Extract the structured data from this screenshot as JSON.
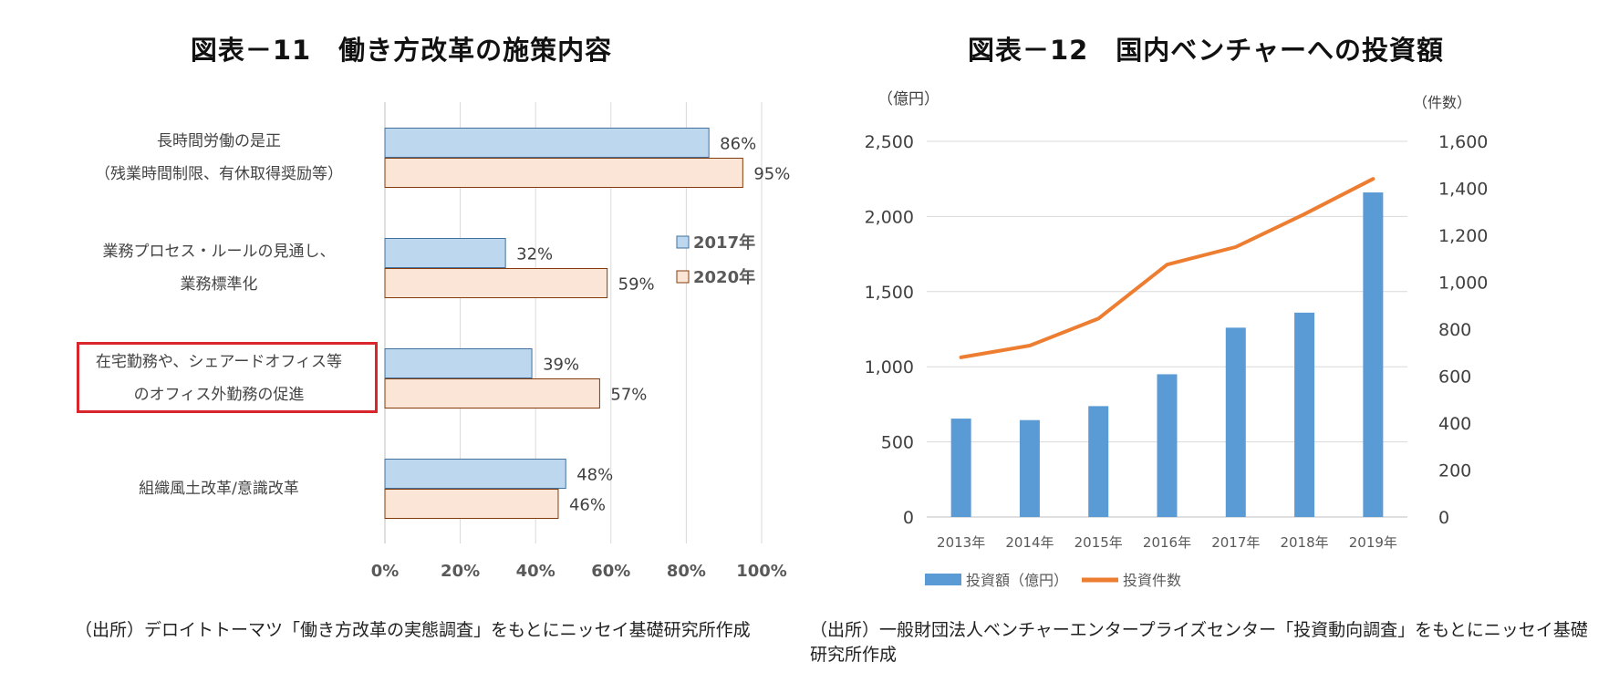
{
  "left_chart": {
    "title": "図表－11　働き方改革の施策内容",
    "source": "（出所）デロイトトーマツ「働き方改革の実態調査」をもとにニッセイ基礎研究所作成",
    "colors": {
      "s2017_fill": "#bdd7ee",
      "s2017_stroke": "#41719c",
      "s2020_fill": "#fbe5d6",
      "s2020_stroke": "#843c0c",
      "highlight": "#d9262c"
    }
  },
  "right_chart": {
    "title": "図表－12　国内ベンチャーへの投資額",
    "source": "（出所）一般財団法人ベンチャーエンタープライズセンター「投資動向調査」をもとにニッセイ基礎研究所作成",
    "colors": {
      "bar": "#5b9bd5",
      "line": "#ed7d31"
    }
  },
  "chart_data": [
    {
      "type": "bar",
      "orientation": "horizontal",
      "title": "図表－11　働き方改革の施策内容",
      "categories": [
        [
          "長時間労働の是正",
          "（残業時間制限、有休取得奨励等）"
        ],
        [
          "業務プロセス・ルールの見通し、",
          "業務標準化"
        ],
        [
          "在宅勤務や、シェアードオフィス等",
          "のオフィス外勤務の促進"
        ],
        [
          "組織風土改革/意識改革"
        ]
      ],
      "highlighted_category_index": 2,
      "series": [
        {
          "name": "2017年",
          "values": [
            86,
            32,
            39,
            48
          ]
        },
        {
          "name": "2020年",
          "values": [
            95,
            59,
            57,
            46
          ]
        }
      ],
      "data_labels": [
        [
          "86%",
          "32%",
          "39%",
          "48%"
        ],
        [
          "95%",
          "59%",
          "57%",
          "46%"
        ]
      ],
      "xlim": [
        0,
        100
      ],
      "xticks": [
        "0%",
        "20%",
        "40%",
        "60%",
        "80%",
        "100%"
      ],
      "grid": true,
      "legend_position": "right"
    },
    {
      "type": "bar",
      "title": "図表－12　国内ベンチャーへの投資額",
      "categories": [
        "2013年",
        "2014年",
        "2015年",
        "2016年",
        "2017年",
        "2018年",
        "2019年"
      ],
      "series": [
        {
          "name": "投資額（億円）",
          "type": "bar",
          "axis": "left",
          "values": [
            655,
            645,
            738,
            950,
            1260,
            1360,
            2160
          ]
        },
        {
          "name": "投資件数",
          "type": "line",
          "axis": "right",
          "values": [
            680,
            730,
            845,
            1075,
            1150,
            1290,
            1440
          ]
        }
      ],
      "ylabel_left": "（億円）",
      "ylabel_right": "（件数）",
      "ylim_left": [
        0,
        2500
      ],
      "ylim_right": [
        0,
        1600
      ],
      "yticks_left": [
        "0",
        "500",
        "1,000",
        "1,500",
        "2,000",
        "2,500"
      ],
      "yticks_right": [
        "0",
        "200",
        "400",
        "600",
        "800",
        "1,000",
        "1,200",
        "1,400",
        "1,600"
      ],
      "grid": true,
      "legend_position": "bottom"
    }
  ]
}
